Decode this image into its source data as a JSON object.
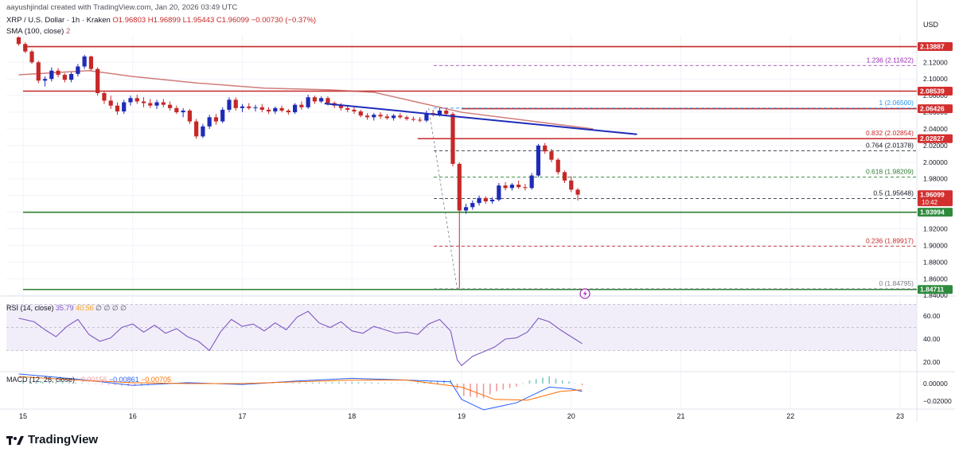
{
  "header": {
    "author_line": "aayushjindal created with TradingView.com, Jan 20, 2026 03:49 UTC",
    "symbol_line": "XRP / U.S. Dollar · 1h · Kraken",
    "ohlc": {
      "o": "O1.96803",
      "h": "H1.96899",
      "l": "L1.95443",
      "c": "C1.96099",
      "chg": "−0.00730 (−0.37%)"
    },
    "sma_line": "SMA (100, close)",
    "sma_value": "2"
  },
  "price_axis": {
    "currency": "USD",
    "ticks": [
      "2.12000",
      "2.10000",
      "2.08000",
      "2.06000",
      "2.04000",
      "2.02000",
      "2.00000",
      "1.98000",
      "1.96000",
      "1.94000",
      "1.92000",
      "1.90000",
      "1.88000",
      "1.86000",
      "1.84000"
    ]
  },
  "price_tags": [
    {
      "price": 2.13887,
      "text": "2.13887",
      "color": "#d32f2f"
    },
    {
      "price": 2.08539,
      "text": "2.08539",
      "color": "#d32f2f"
    },
    {
      "price": 2.06426,
      "text": "2.06426",
      "color": "#d32f2f"
    },
    {
      "price": 2.02827,
      "text": "2.02827",
      "color": "#d32f2f"
    },
    {
      "price": 1.96099,
      "text": "1.96099",
      "subtext": "10:42",
      "color": "#d32f2f"
    },
    {
      "price": 1.93994,
      "text": "1.93994",
      "color": "#2e8b3e"
    },
    {
      "price": 1.84711,
      "text": "1.84711",
      "color": "#2e8b3e"
    }
  ],
  "horizontal_lines": [
    {
      "price": 2.13887,
      "color": "#c62828",
      "from_date": "15"
    },
    {
      "price": 2.08539,
      "color": "#c62828",
      "from_date": "15"
    },
    {
      "price": 2.06426,
      "color": "#c62828",
      "from_date": "19"
    },
    {
      "price": 2.02827,
      "color": "#c62828",
      "from_date": "18.6"
    },
    {
      "price": 1.93994,
      "color": "#2e7d32",
      "from_date": "15"
    },
    {
      "price": 1.84711,
      "color": "#2e7d32",
      "from_date": "15"
    }
  ],
  "fibonacci": [
    {
      "label": "1.236 (2.11622)",
      "price": 2.11622,
      "color": "#9c27b0"
    },
    {
      "label": "1 (2.06500)",
      "price": 2.065,
      "color": "#2196f3"
    },
    {
      "label": "0.832 (2.02854)",
      "price": 2.02854,
      "color": "#c62828"
    },
    {
      "label": "0.764 (2.01378)",
      "price": 2.01378,
      "color": "#131722"
    },
    {
      "label": "0.618 (1.98209)",
      "price": 1.98209,
      "color": "#2e7d32"
    },
    {
      "label": "0.5 (1.95648)",
      "price": 1.95648,
      "color": "#131722"
    },
    {
      "label": "0.236 (1.89917)",
      "price": 1.89917,
      "color": "#c62828"
    },
    {
      "label": "0 (1.84795)",
      "price": 1.84795,
      "color": "#787b86"
    }
  ],
  "trendline": {
    "color": "#1e2bb8",
    "start": {
      "day": 17.75,
      "price": 2.0705
    },
    "end": {
      "day": 20.6,
      "price": 2.0335
    }
  },
  "x_axis": {
    "ticks": [
      {
        "day": 15,
        "label": "15"
      },
      {
        "day": 16,
        "label": "16"
      },
      {
        "day": 17,
        "label": "17"
      },
      {
        "day": 18,
        "label": "18"
      },
      {
        "day": 19,
        "label": "19"
      },
      {
        "day": 20,
        "label": "20"
      },
      {
        "day": 21,
        "label": "21"
      },
      {
        "day": 22,
        "label": "22"
      },
      {
        "day": 23,
        "label": "23"
      }
    ]
  },
  "rsi": {
    "label": "RSI (14, close)",
    "value": "35.79",
    "value2": "40.56",
    "extras": "∅ ∅ ∅ ∅",
    "ticks": [
      "60.00",
      "40.00",
      "20.00"
    ]
  },
  "macd": {
    "label": "MACD (12, 26, close)",
    "hist": "−0.00156",
    "macd": "−0.00861",
    "signal": "−0.00705",
    "ticks": [
      "0.00000",
      "−0.02000"
    ]
  },
  "logo": "TradingView",
  "colors": {
    "up": "#1e2bb8",
    "down": "#c62828",
    "sma": "#c0504d",
    "rsi": "#7e57c2",
    "rsi_band": "#ede7f6"
  },
  "chart_data": {
    "type": "candlestick",
    "title": "XRP / U.S. Dollar · 1h · Kraken",
    "x_unit": "day (January 2026)",
    "ylim": [
      1.83,
      2.15
    ],
    "candles": [
      [
        14.96,
        2.15,
        2.151,
        2.14,
        2.142
      ],
      [
        15.02,
        2.142,
        2.144,
        2.131,
        2.133
      ],
      [
        15.08,
        2.133,
        2.135,
        2.118,
        2.12
      ],
      [
        15.14,
        2.12,
        2.122,
        2.095,
        2.098
      ],
      [
        15.2,
        2.098,
        2.103,
        2.091,
        2.1
      ],
      [
        15.26,
        2.1,
        2.114,
        2.097,
        2.11
      ],
      [
        15.32,
        2.11,
        2.113,
        2.102,
        2.105
      ],
      [
        15.38,
        2.105,
        2.107,
        2.096,
        2.099
      ],
      [
        15.44,
        2.099,
        2.108,
        2.096,
        2.106
      ],
      [
        15.5,
        2.106,
        2.118,
        2.103,
        2.115
      ],
      [
        15.56,
        2.115,
        2.129,
        2.112,
        2.127
      ],
      [
        15.62,
        2.127,
        2.128,
        2.11,
        2.112
      ],
      [
        15.68,
        2.112,
        2.114,
        2.08,
        2.083
      ],
      [
        15.74,
        2.083,
        2.086,
        2.07,
        2.074
      ],
      [
        15.8,
        2.074,
        2.08,
        2.064,
        2.068
      ],
      [
        15.86,
        2.068,
        2.072,
        2.057,
        2.061
      ],
      [
        15.92,
        2.061,
        2.075,
        2.058,
        2.072
      ],
      [
        15.98,
        2.072,
        2.08,
        2.068,
        2.077
      ],
      [
        16.04,
        2.077,
        2.081,
        2.07,
        2.073
      ],
      [
        16.1,
        2.073,
        2.078,
        2.066,
        2.071
      ],
      [
        16.16,
        2.071,
        2.076,
        2.065,
        2.068
      ],
      [
        16.22,
        2.068,
        2.075,
        2.064,
        2.072
      ],
      [
        16.28,
        2.072,
        2.076,
        2.066,
        2.069
      ],
      [
        16.34,
        2.069,
        2.073,
        2.062,
        2.065
      ],
      [
        16.4,
        2.065,
        2.068,
        2.058,
        2.06
      ],
      [
        16.46,
        2.06,
        2.065,
        2.054,
        2.062
      ],
      [
        16.52,
        2.062,
        2.064,
        2.046,
        2.049
      ],
      [
        16.58,
        2.049,
        2.052,
        2.028,
        2.031
      ],
      [
        16.64,
        2.031,
        2.046,
        2.029,
        2.043
      ],
      [
        16.7,
        2.043,
        2.057,
        2.04,
        2.054
      ],
      [
        16.76,
        2.054,
        2.058,
        2.045,
        2.049
      ],
      [
        16.82,
        2.049,
        2.066,
        2.047,
        2.063
      ],
      [
        16.88,
        2.063,
        2.078,
        2.06,
        2.075
      ],
      [
        16.94,
        2.075,
        2.078,
        2.062,
        2.065
      ],
      [
        17.0,
        2.065,
        2.07,
        2.06,
        2.067
      ],
      [
        17.06,
        2.067,
        2.071,
        2.063,
        2.065
      ],
      [
        17.12,
        2.065,
        2.069,
        2.061,
        2.066
      ],
      [
        17.18,
        2.066,
        2.07,
        2.06,
        2.063
      ],
      [
        17.24,
        2.063,
        2.066,
        2.058,
        2.061
      ],
      [
        17.3,
        2.061,
        2.067,
        2.058,
        2.065
      ],
      [
        17.36,
        2.065,
        2.068,
        2.06,
        2.062
      ],
      [
        17.42,
        2.062,
        2.064,
        2.057,
        2.06
      ],
      [
        17.48,
        2.06,
        2.071,
        2.058,
        2.069
      ],
      [
        17.54,
        2.069,
        2.073,
        2.063,
        2.066
      ],
      [
        17.6,
        2.066,
        2.081,
        2.064,
        2.078
      ],
      [
        17.66,
        2.078,
        2.08,
        2.07,
        2.073
      ],
      [
        17.72,
        2.073,
        2.079,
        2.071,
        2.077
      ],
      [
        17.78,
        2.077,
        2.079,
        2.068,
        2.071
      ],
      [
        17.84,
        2.071,
        2.073,
        2.065,
        2.068
      ],
      [
        17.9,
        2.068,
        2.071,
        2.062,
        2.065
      ],
      [
        17.96,
        2.065,
        2.068,
        2.06,
        2.063
      ],
      [
        18.02,
        2.063,
        2.066,
        2.058,
        2.061
      ],
      [
        18.08,
        2.061,
        2.063,
        2.054,
        2.056
      ],
      [
        18.14,
        2.056,
        2.059,
        2.051,
        2.054
      ],
      [
        18.2,
        2.054,
        2.059,
        2.05,
        2.057
      ],
      [
        18.26,
        2.057,
        2.06,
        2.052,
        2.055
      ],
      [
        18.32,
        2.055,
        2.058,
        2.051,
        2.053
      ],
      [
        18.38,
        2.053,
        2.058,
        2.05,
        2.056
      ],
      [
        18.44,
        2.056,
        2.059,
        2.052,
        2.054
      ],
      [
        18.5,
        2.054,
        2.056,
        2.05,
        2.052
      ],
      [
        18.56,
        2.052,
        2.055,
        2.049,
        2.051
      ],
      [
        18.62,
        2.051,
        2.054,
        2.048,
        2.05
      ],
      [
        18.68,
        2.05,
        2.062,
        2.048,
        2.059
      ],
      [
        18.74,
        2.059,
        2.063,
        2.055,
        2.057
      ],
      [
        18.8,
        2.057,
        2.065,
        2.055,
        2.062
      ],
      [
        18.86,
        2.062,
        2.064,
        2.055,
        2.058
      ],
      [
        18.92,
        2.058,
        2.06,
        1.995,
        1.998
      ],
      [
        18.98,
        1.998,
        2.0,
        1.848,
        1.942
      ],
      [
        19.04,
        1.942,
        1.95,
        1.938,
        1.946
      ],
      [
        19.1,
        1.946,
        1.954,
        1.943,
        1.951
      ],
      [
        19.16,
        1.951,
        1.96,
        1.948,
        1.957
      ],
      [
        19.22,
        1.957,
        1.959,
        1.95,
        1.953
      ],
      [
        19.28,
        1.953,
        1.958,
        1.95,
        1.955
      ],
      [
        19.34,
        1.955,
        1.975,
        1.953,
        1.972
      ],
      [
        19.4,
        1.972,
        1.976,
        1.966,
        1.969
      ],
      [
        19.46,
        1.969,
        1.975,
        1.966,
        1.973
      ],
      [
        19.52,
        1.973,
        1.978,
        1.968,
        1.97
      ],
      [
        19.58,
        1.97,
        1.974,
        1.966,
        1.969
      ],
      [
        19.64,
        1.969,
        1.987,
        1.967,
        1.984
      ],
      [
        19.7,
        1.984,
        2.022,
        1.982,
        2.02
      ],
      [
        19.76,
        2.02,
        2.023,
        2.01,
        2.013
      ],
      [
        19.82,
        2.013,
        2.016,
        2.0,
        2.003
      ],
      [
        19.88,
        2.003,
        2.005,
        1.985,
        1.988
      ],
      [
        19.94,
        1.988,
        1.99,
        1.975,
        1.978
      ],
      [
        20.0,
        1.978,
        1.983,
        1.964,
        1.967
      ],
      [
        20.06,
        1.967,
        1.969,
        1.954,
        1.961
      ]
    ],
    "sma100": [
      [
        14.96,
        2.105
      ],
      [
        15.6,
        2.11
      ],
      [
        16.0,
        2.103
      ],
      [
        16.6,
        2.095
      ],
      [
        17.2,
        2.089
      ],
      [
        17.8,
        2.087
      ],
      [
        18.2,
        2.084
      ],
      [
        18.6,
        2.072
      ],
      [
        19.0,
        2.06
      ],
      [
        19.6,
        2.05
      ],
      [
        20.2,
        2.04
      ]
    ],
    "rsi_values": [
      [
        14.96,
        58
      ],
      [
        15.1,
        55
      ],
      [
        15.2,
        48
      ],
      [
        15.3,
        42
      ],
      [
        15.4,
        51
      ],
      [
        15.5,
        57
      ],
      [
        15.6,
        44
      ],
      [
        15.7,
        38
      ],
      [
        15.8,
        41
      ],
      [
        15.9,
        50
      ],
      [
        16.0,
        53
      ],
      [
        16.1,
        46
      ],
      [
        16.2,
        52
      ],
      [
        16.3,
        45
      ],
      [
        16.4,
        49
      ],
      [
        16.5,
        42
      ],
      [
        16.6,
        38
      ],
      [
        16.7,
        30
      ],
      [
        16.8,
        46
      ],
      [
        16.9,
        57
      ],
      [
        17.0,
        51
      ],
      [
        17.1,
        53
      ],
      [
        17.2,
        47
      ],
      [
        17.3,
        54
      ],
      [
        17.4,
        48
      ],
      [
        17.5,
        59
      ],
      [
        17.6,
        64
      ],
      [
        17.7,
        54
      ],
      [
        17.8,
        50
      ],
      [
        17.9,
        55
      ],
      [
        18.0,
        47
      ],
      [
        18.1,
        45
      ],
      [
        18.2,
        51
      ],
      [
        18.3,
        48
      ],
      [
        18.4,
        45
      ],
      [
        18.5,
        46
      ],
      [
        18.6,
        44
      ],
      [
        18.7,
        53
      ],
      [
        18.8,
        57
      ],
      [
        18.9,
        47
      ],
      [
        18.96,
        22
      ],
      [
        19.0,
        17
      ],
      [
        19.1,
        25
      ],
      [
        19.2,
        29
      ],
      [
        19.3,
        33
      ],
      [
        19.4,
        40
      ],
      [
        19.5,
        41
      ],
      [
        19.6,
        46
      ],
      [
        19.7,
        58
      ],
      [
        19.8,
        55
      ],
      [
        19.9,
        48
      ],
      [
        20.0,
        42
      ],
      [
        20.1,
        36
      ]
    ],
    "macd_values": [
      [
        14.96,
        0.011
      ],
      [
        15.5,
        0.005
      ],
      [
        16.0,
        -0.002
      ],
      [
        16.5,
        0.001
      ],
      [
        17.0,
        -0.001
      ],
      [
        17.5,
        0.003
      ],
      [
        18.0,
        0.006
      ],
      [
        18.5,
        0.004
      ],
      [
        18.9,
        0.002
      ],
      [
        19.0,
        -0.018
      ],
      [
        19.2,
        -0.03
      ],
      [
        19.5,
        -0.022
      ],
      [
        19.8,
        -0.004
      ],
      [
        20.0,
        -0.006
      ],
      [
        20.1,
        -0.009
      ]
    ],
    "signal_values": [
      [
        14.96,
        0.008
      ],
      [
        15.5,
        0.004
      ],
      [
        16.0,
        0.001
      ],
      [
        16.5,
        0.0
      ],
      [
        17.0,
        0.0
      ],
      [
        17.5,
        0.002
      ],
      [
        18.0,
        0.004
      ],
      [
        18.5,
        0.004
      ],
      [
        19.0,
        -0.004
      ],
      [
        19.3,
        -0.018
      ],
      [
        19.6,
        -0.019
      ],
      [
        19.9,
        -0.009
      ],
      [
        20.1,
        -0.007
      ]
    ]
  }
}
